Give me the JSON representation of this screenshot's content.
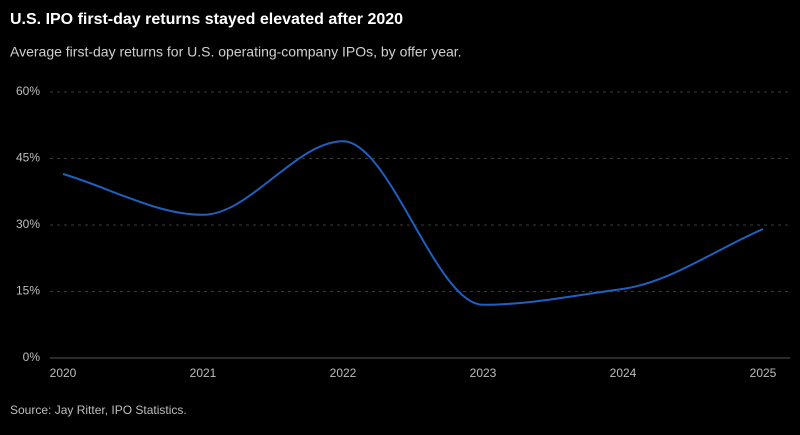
{
  "chart_data": {
    "type": "line",
    "title": "U.S. IPO first-day returns stayed elevated after 2020",
    "subtitle": "Average first-day returns for U.S. operating-company IPOs, by offer year.",
    "source": "Source: Jay Ritter, IPO Statistics.",
    "x": [
      2020,
      2021,
      2022,
      2023,
      2024,
      2025
    ],
    "series": [
      {
        "name": "Average first-day return",
        "color": "#1f5fbf",
        "values": [
          41.5,
          32.3,
          48.9,
          12,
          15.6,
          29.1
        ]
      }
    ],
    "xlim": [
      2020,
      2025
    ],
    "xticks": [
      2020,
      2021,
      2022,
      2023,
      2024,
      2025
    ],
    "ylim": [
      0,
      60
    ],
    "yticks": [
      {
        "value": 0,
        "label": "0%"
      },
      {
        "value": 15,
        "label": "15%"
      },
      {
        "value": 30,
        "label": "30%"
      },
      {
        "value": 45,
        "label": "45%"
      },
      {
        "value": 60,
        "label": "60%"
      }
    ],
    "grid": true
  }
}
